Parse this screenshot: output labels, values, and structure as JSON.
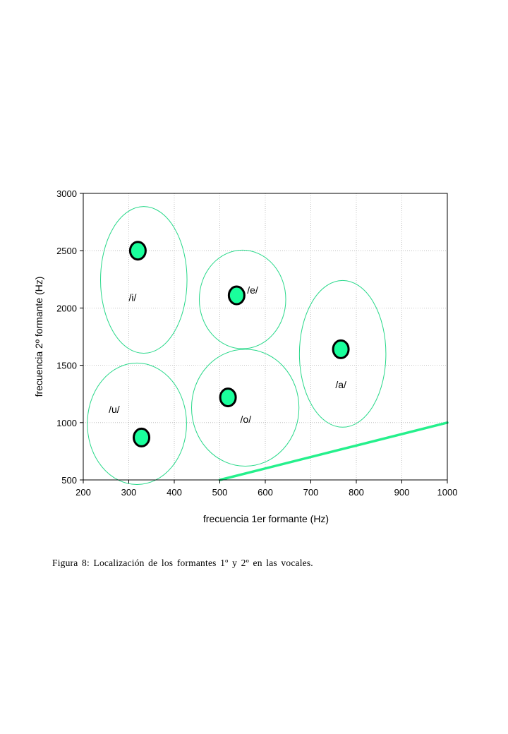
{
  "chart_data": {
    "type": "scatter",
    "xlabel": "frecuencia 1er  formante (Hz)",
    "ylabel": "frecuencia 2º formante (Hz)",
    "xlim": [
      200,
      1000
    ],
    "ylim": [
      500,
      3000
    ],
    "xticks": [
      200,
      300,
      400,
      500,
      600,
      700,
      800,
      900,
      1000
    ],
    "yticks": [
      500,
      1000,
      1500,
      2000,
      2500,
      3000
    ],
    "grid": true,
    "colors": {
      "fill": "#1aff9c",
      "ellipse": "#27d889",
      "line": "#25f08c",
      "outline": "#000000"
    },
    "points": [
      {
        "label": "/i/",
        "x": 320,
        "y": 2500
      },
      {
        "label": "/e/",
        "x": 537,
        "y": 2110
      },
      {
        "label": "/a/",
        "x": 766,
        "y": 1640
      },
      {
        "label": "/o/",
        "x": 518,
        "y": 1220
      },
      {
        "label": "/u/",
        "x": 328,
        "y": 870
      }
    ],
    "ellipses": [
      {
        "vowel": "/i/",
        "cx": 333,
        "cy": 2245,
        "rx": 95,
        "ry": 640
      },
      {
        "vowel": "/e/",
        "cx": 550,
        "cy": 2075,
        "rx": 95,
        "ry": 430
      },
      {
        "vowel": "/a/",
        "cx": 770,
        "cy": 1600,
        "rx": 95,
        "ry": 640
      },
      {
        "vowel": "/o/",
        "cx": 556,
        "cy": 1130,
        "rx": 118,
        "ry": 510
      },
      {
        "vowel": "/u/",
        "cx": 318,
        "cy": 990,
        "rx": 109,
        "ry": 530
      }
    ],
    "reference_line": {
      "x": [
        500,
        1000
      ],
      "y": [
        500,
        1000
      ]
    },
    "annotations": [
      {
        "text": "/i/",
        "x": 300,
        "y": 2060
      },
      {
        "text": "/e/",
        "x": 560,
        "y": 2125
      },
      {
        "text": "/a/",
        "x": 754,
        "y": 1300
      },
      {
        "text": "/o/",
        "x": 545,
        "y": 1000
      },
      {
        "text": "/u/",
        "x": 256,
        "y": 1085
      }
    ]
  },
  "caption": "Figura 8: Localización de los formantes 1º y 2º en las vocales."
}
